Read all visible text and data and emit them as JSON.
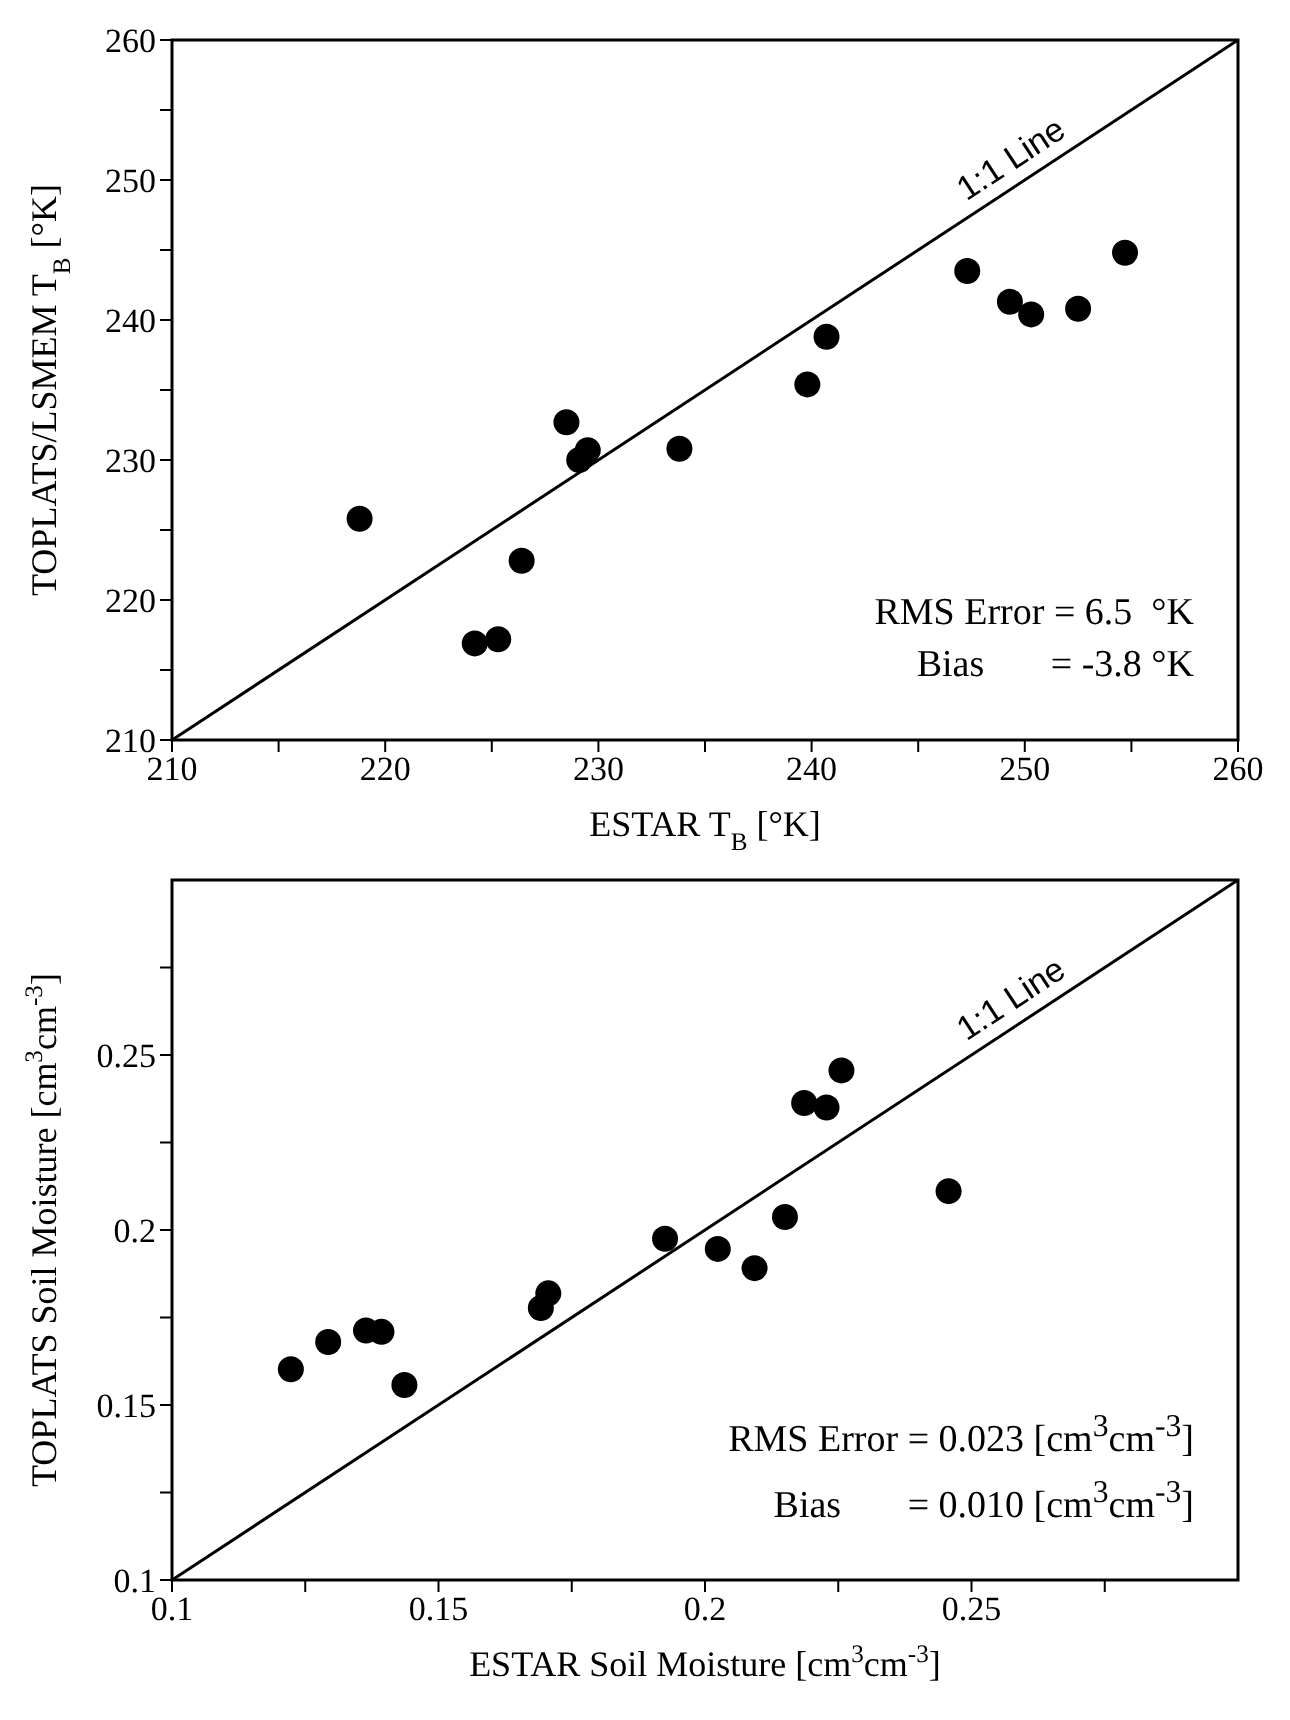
{
  "chart_data": [
    {
      "type": "scatter",
      "xlabel": "ESTAR T$_{B}$ [°K]",
      "ylabel": "TOPLATS/LSMEM T$_{B}$ [°K]",
      "xlim": [
        210,
        260
      ],
      "ylim": [
        210,
        260
      ],
      "xticks": [
        210,
        {
          "value": 215,
          "label": null
        },
        220,
        {
          "value": 225,
          "label": null
        },
        230,
        {
          "value": 235,
          "label": null
        },
        240,
        {
          "value": 245,
          "label": null
        },
        250,
        {
          "value": 255,
          "label": null
        },
        260
      ],
      "yticks": [
        210,
        {
          "value": 215,
          "label": null
        },
        220,
        {
          "value": 225,
          "label": null
        },
        230,
        {
          "value": 235,
          "label": null
        },
        240,
        {
          "value": 245,
          "label": null
        },
        250,
        {
          "value": 255,
          "label": null
        },
        260
      ],
      "annotations": [
        "RMS Error = 6.5  °K",
        "Bias       = -3.8 °K"
      ],
      "series": [
        {
          "color": "#000000",
          "marker": "circle",
          "x": [
            218.8,
            224.2,
            225.3,
            226.4,
            228.5,
            229.1,
            229.5,
            233.8,
            239.8,
            240.7,
            247.3,
            249.3,
            250.3,
            252.5,
            254.7
          ],
          "values": [
            225.8,
            216.9,
            217.2,
            222.8,
            232.7,
            230.0,
            230.7,
            230.8,
            235.4,
            238.8,
            243.5,
            241.3,
            240.4,
            240.8,
            244.8
          ]
        },
        {
          "type": "line",
          "name": "1:1 Line",
          "color": "#000000",
          "x": [
            210,
            260
          ],
          "values": [
            210,
            260
          ]
        }
      ]
    },
    {
      "type": "scatter",
      "xlabel": "ESTAR Soil Moisture [cm$^{3}$cm$^{-3}$]",
      "ylabel": "TOPLATS Soil Moisture [cm$^{3}$cm$^{-3}$]",
      "xlim": [
        0.1,
        0.3
      ],
      "ylim": [
        0.1,
        0.3
      ],
      "xticks": [
        0.1,
        {
          "value": 0.125,
          "label": null
        },
        0.15,
        {
          "value": 0.175,
          "label": null
        },
        0.2,
        {
          "value": 0.225,
          "label": null
        },
        0.25,
        {
          "value": 0.275,
          "label": null
        }
      ],
      "yticks": [
        0.1,
        {
          "value": 0.125,
          "label": null
        },
        0.15,
        {
          "value": 0.175,
          "label": null
        },
        0.2,
        {
          "value": 0.225,
          "label": null
        },
        0.25,
        {
          "value": 0.275,
          "label": null
        }
      ],
      "annotations": [
        "RMS Error = 0.023 [cm$^{3}$cm$^{-3}$]",
        "Bias       = 0.010 [cm$^{3}$cm$^{-3}$]"
      ],
      "series": [
        {
          "color": "#000000",
          "marker": "circle",
          "x": [
            0.1223,
            0.1293,
            0.1364,
            0.1393,
            0.1436,
            0.1692,
            0.1706,
            0.1925,
            0.2024,
            0.2093,
            0.215,
            0.2186,
            0.2228,
            0.2256,
            0.2457
          ],
          "values": [
            0.1602,
            0.168,
            0.1713,
            0.1709,
            0.1557,
            0.1777,
            0.1819,
            0.1975,
            0.1946,
            0.1891,
            0.2037,
            0.2363,
            0.235,
            0.2456,
            0.2111
          ]
        },
        {
          "type": "line",
          "name": "1:1 Line",
          "color": "#000000",
          "x": [
            0.1,
            0.3
          ],
          "values": [
            0.1,
            0.3
          ]
        }
      ]
    }
  ]
}
